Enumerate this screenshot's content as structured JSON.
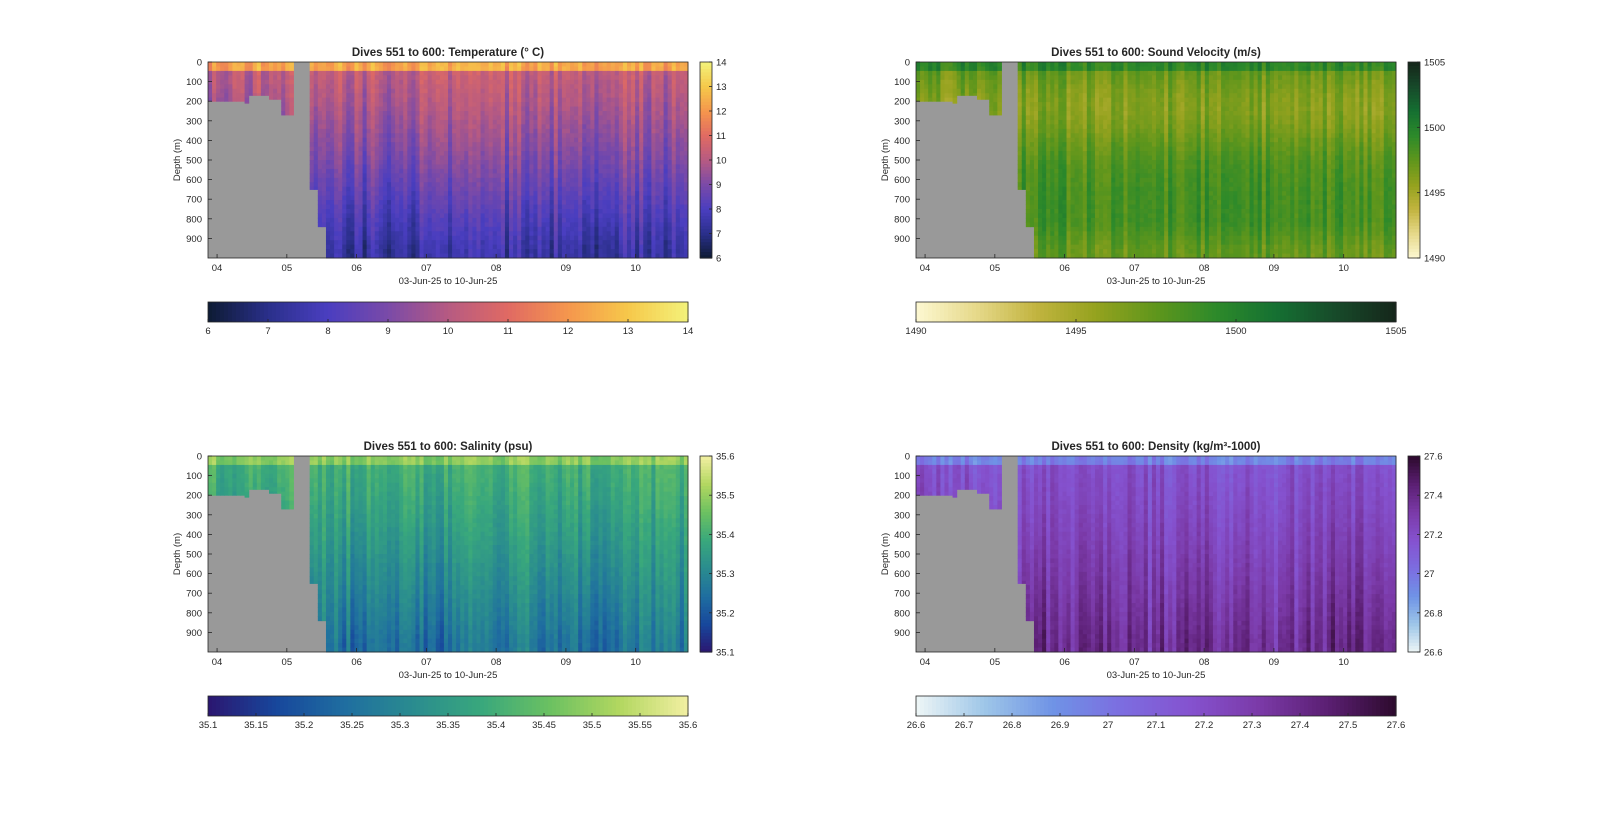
{
  "figure": {
    "panels": [
      {
        "id": "temperature",
        "title": "Dives 551 to 600: Temperature (° C)",
        "ylabel": "Depth (m)",
        "xlabel": "03-Jun-25 to 10-Jun-25",
        "colormap": [
          "#0d1b33",
          "#2a2f8a",
          "#4a3ec0",
          "#7a4aa8",
          "#b65a82",
          "#e06a63",
          "#f5964d",
          "#f6c84a",
          "#f3f27a"
        ],
        "clim": [
          6,
          14
        ],
        "cticks": [
          "6",
          "7",
          "8",
          "9",
          "10",
          "11",
          "12",
          "13",
          "14"
        ],
        "hticks": [
          "6",
          "7",
          "8",
          "9",
          "10",
          "11",
          "12",
          "13",
          "14"
        ],
        "surface": 12.3,
        "mid": 10.2,
        "deep": 7.6,
        "deep_min": 7.2
      },
      {
        "id": "sound_velocity",
        "title": "Dives 551 to 600: Sound Velocity (m/s)",
        "ylabel": "Depth (m)",
        "xlabel": "03-Jun-25 to 10-Jun-25",
        "colormap": [
          "#fdf8d2",
          "#e6d98a",
          "#c2b43f",
          "#94a21e",
          "#5f961c",
          "#2d8a2a",
          "#157032",
          "#174a2a",
          "#15261a"
        ],
        "clim": [
          1490,
          1505
        ],
        "cticks": [
          "1490",
          "1495",
          "1500",
          "1505"
        ],
        "hticks": [
          "1490",
          "1495",
          "1500",
          "1505"
        ],
        "surface": 1499.5,
        "mid": 1497.0,
        "deep": 1499.3,
        "deep_min": 1495.8
      },
      {
        "id": "salinity",
        "title": "Dives 551 to 600: Salinity (psu)",
        "ylabel": "Depth (m)",
        "xlabel": "03-Jun-25 to 10-Jun-25",
        "colormap": [
          "#2b1670",
          "#17479c",
          "#1f6ea0",
          "#2a8c8f",
          "#39a87c",
          "#6cc161",
          "#b2d760",
          "#f2efa2"
        ],
        "clim": [
          35.1,
          35.6
        ],
        "cticks": [
          "35.1",
          "35.2",
          "35.3",
          "35.4",
          "35.5",
          "35.6"
        ],
        "hticks": [
          "35.1",
          "35.15",
          "35.2",
          "35.25",
          "35.3",
          "35.35",
          "35.4",
          "35.45",
          "35.5",
          "35.55",
          "35.6"
        ],
        "surface": 35.49,
        "mid": 35.4,
        "deep": 35.29,
        "deep_min": 35.22
      },
      {
        "id": "density",
        "title": "Dives 551 to 600: Density (kg/m³-1000)",
        "ylabel": "Depth (m)",
        "xlabel": "03-Jun-25 to 10-Jun-25",
        "colormap": [
          "#eef6f6",
          "#9ec6e8",
          "#6f93e6",
          "#7c6de0",
          "#8552cf",
          "#7b3aa8",
          "#5b1f73",
          "#2d0a2d"
        ],
        "clim": [
          26.6,
          27.6
        ],
        "cticks": [
          "26.6",
          "26.8",
          "27",
          "27.2",
          "27.4",
          "27.6"
        ],
        "hticks": [
          "26.6",
          "26.7",
          "26.8",
          "26.9",
          "27",
          "27.1",
          "27.2",
          "27.3",
          "27.4",
          "27.5",
          "27.6"
        ],
        "surface": 26.95,
        "mid": 27.18,
        "deep": 27.45,
        "deep_min": 27.3
      }
    ]
  },
  "chart_data": {
    "type": "heatmap",
    "x_range": [
      "03-Jun-25",
      "10-Jun-25"
    ],
    "x_ticks": [
      "04",
      "05",
      "06",
      "07",
      "08",
      "09",
      "10"
    ],
    "x_tick_values_days": [
      4,
      5,
      6,
      7,
      8,
      9,
      10
    ],
    "x_lim_days": [
      3.87,
      10.75
    ],
    "y_ticks": [
      "0",
      "100",
      "200",
      "300",
      "400",
      "500",
      "600",
      "700",
      "800",
      "900"
    ],
    "ylim": [
      0,
      1000
    ],
    "y_direction": "reversed",
    "missing_color": "#999999",
    "seafloor_depth_m": [
      {
        "day": 3.87,
        "depth": 200
      },
      {
        "day": 4.4,
        "depth": 210
      },
      {
        "day": 4.45,
        "depth": 170
      },
      {
        "day": 4.75,
        "depth": 190
      },
      {
        "day": 4.9,
        "depth": 270
      },
      {
        "day": 5.07,
        "depth": 410
      },
      {
        "day": 5.12,
        "depth": 0
      },
      {
        "day": 5.27,
        "depth": 0
      },
      {
        "day": 5.3,
        "depth": 650
      },
      {
        "day": 5.45,
        "depth": 840
      },
      {
        "day": 5.58,
        "depth": 1000
      }
    ]
  }
}
